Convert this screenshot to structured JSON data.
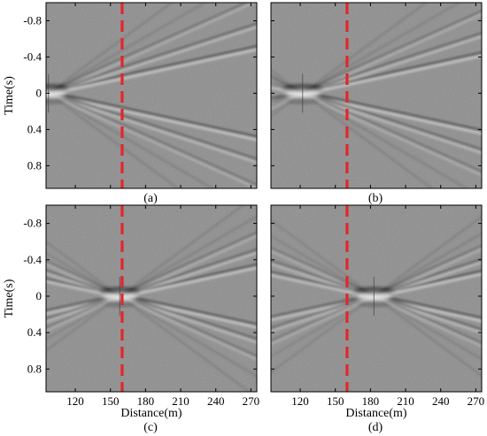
{
  "chart_data": {
    "type": "heatmap",
    "x_ticks": [
      120,
      150,
      180,
      210,
      240,
      270
    ],
    "y_ticks": [
      -0.8,
      -0.4,
      0,
      0.4,
      0.8
    ],
    "y_tick_labels": [
      "-0.8",
      "-0.4",
      "0",
      "0.4",
      "0.8"
    ],
    "xlabel": "Distance(m)",
    "ylabel": "Time(s)",
    "xlim": [
      95,
      275
    ],
    "ylim": [
      -1.0,
      1.05
    ],
    "reference_line": {
      "x": 160,
      "color": "#e3262a",
      "style": "dashed"
    },
    "colormap": [
      "#000000",
      "#ffffff"
    ],
    "background": "#8d8d8d",
    "panels": [
      {
        "label": "(a)",
        "source_x": 97
      },
      {
        "label": "(b)",
        "source_x": 122
      },
      {
        "label": "(c)",
        "source_x": 158
      },
      {
        "label": "(d)",
        "source_x": 183
      }
    ]
  }
}
